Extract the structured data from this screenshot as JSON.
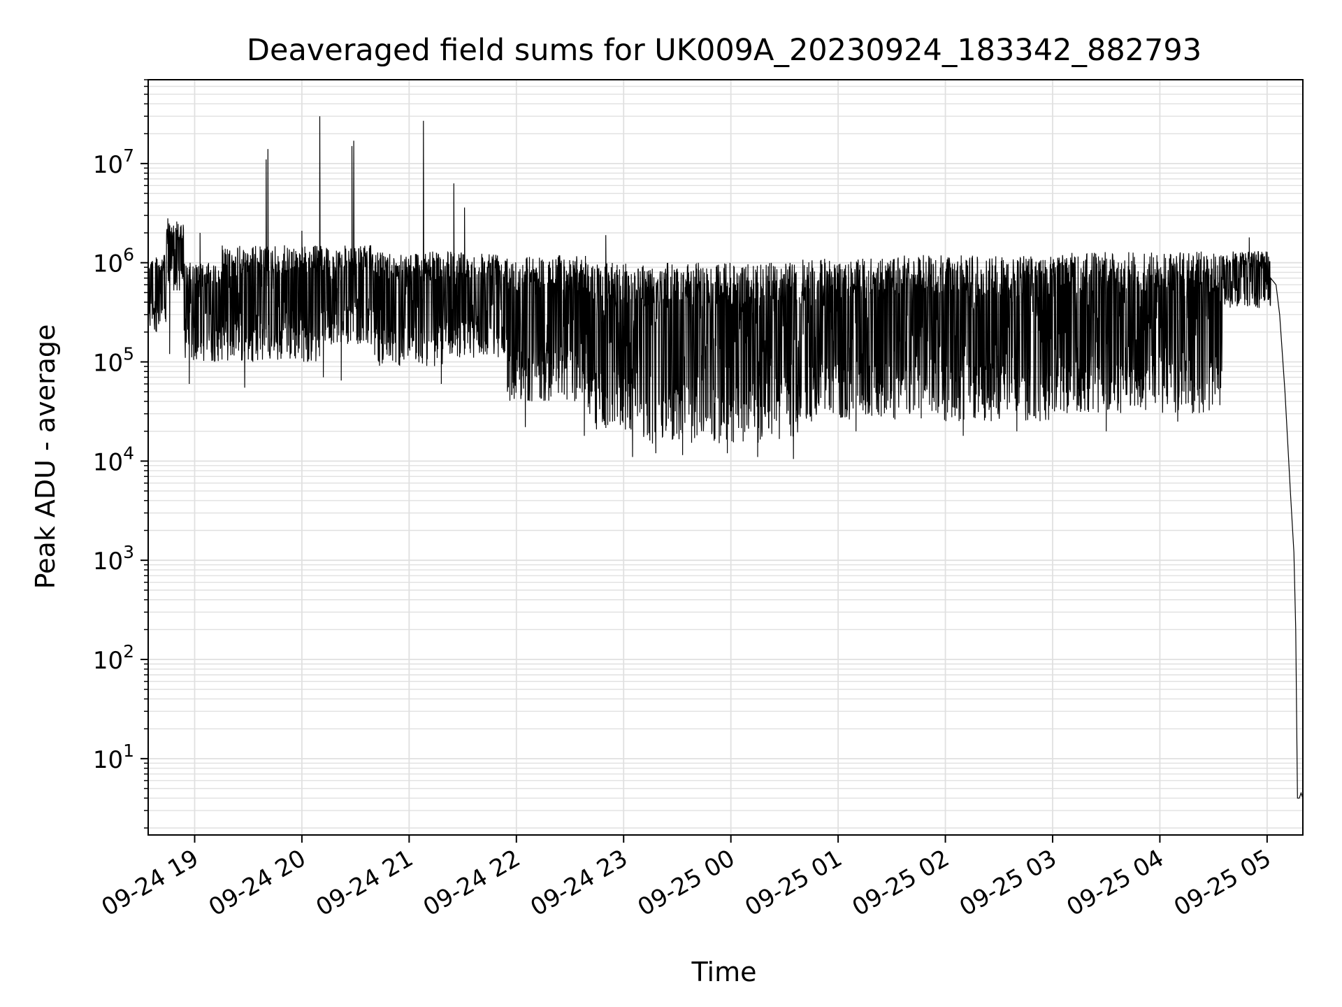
{
  "chart_data": {
    "type": "line",
    "title": "Deaveraged field sums for UK009A_20230924_183342_882793",
    "xlabel": "Time",
    "ylabel": "Peak ADU - average",
    "yscale": "log",
    "ylim": [
      1.7,
      70000000
    ],
    "xlim": [
      "2023-09-24 18:34",
      "2023-09-25 05:20"
    ],
    "grid": true,
    "line_color": "#000000",
    "grid_color": "#e0e0e0",
    "x_ticks": [
      {
        "t": "2023-09-24 19:00",
        "label": "09-24 19"
      },
      {
        "t": "2023-09-24 20:00",
        "label": "09-24 20"
      },
      {
        "t": "2023-09-24 21:00",
        "label": "09-24 21"
      },
      {
        "t": "2023-09-24 22:00",
        "label": "09-24 22"
      },
      {
        "t": "2023-09-24 23:00",
        "label": "09-24 23"
      },
      {
        "t": "2023-09-25 00:00",
        "label": "09-25 00"
      },
      {
        "t": "2023-09-25 01:00",
        "label": "09-25 01"
      },
      {
        "t": "2023-09-25 02:00",
        "label": "09-25 02"
      },
      {
        "t": "2023-09-25 03:00",
        "label": "09-25 03"
      },
      {
        "t": "2023-09-25 04:00",
        "label": "09-25 04"
      },
      {
        "t": "2023-09-25 05:00",
        "label": "09-25 05"
      }
    ],
    "y_ticks": [
      {
        "v": 10,
        "base": "10",
        "exp": "1"
      },
      {
        "v": 100,
        "base": "10",
        "exp": "2"
      },
      {
        "v": 1000,
        "base": "10",
        "exp": "3"
      },
      {
        "v": 10000,
        "base": "10",
        "exp": "4"
      },
      {
        "v": 100000,
        "base": "10",
        "exp": "5"
      },
      {
        "v": 1000000,
        "base": "10",
        "exp": "6"
      },
      {
        "v": 10000000,
        "base": "10",
        "exp": "7"
      }
    ],
    "series": [
      {
        "band_segments": [
          {
            "t0": "2023-09-24 18:34",
            "t1": "2023-09-24 18:44",
            "lo": 200000,
            "hi": 1200000
          },
          {
            "t0": "2023-09-24 18:44",
            "t1": "2023-09-24 18:54",
            "lo": 500000,
            "hi": 2500000
          },
          {
            "t0": "2023-09-24 18:54",
            "t1": "2023-09-24 19:15",
            "lo": 100000,
            "hi": 1000000
          },
          {
            "t0": "2023-09-24 19:15",
            "t1": "2023-09-24 20:10",
            "lo": 100000,
            "hi": 1500000
          },
          {
            "t0": "2023-09-24 20:10",
            "t1": "2023-09-24 20:40",
            "lo": 150000,
            "hi": 1500000
          },
          {
            "t0": "2023-09-24 20:40",
            "t1": "2023-09-24 21:20",
            "lo": 90000,
            "hi": 1300000
          },
          {
            "t0": "2023-09-24 21:20",
            "t1": "2023-09-24 21:55",
            "lo": 110000,
            "hi": 1300000
          },
          {
            "t0": "2023-09-24 21:55",
            "t1": "2023-09-24 22:40",
            "lo": 40000,
            "hi": 1200000
          },
          {
            "t0": "2023-09-24 22:40",
            "t1": "2023-09-24 23:10",
            "lo": 20000,
            "hi": 1000000
          },
          {
            "t0": "2023-09-24 23:10",
            "t1": "2023-09-25 00:40",
            "lo": 15000,
            "hi": 1000000
          },
          {
            "t0": "2023-09-25 00:40",
            "t1": "2023-09-25 01:30",
            "lo": 25000,
            "hi": 1100000
          },
          {
            "t0": "2023-09-25 01:30",
            "t1": "2023-09-25 03:00",
            "lo": 25000,
            "hi": 1200000
          },
          {
            "t0": "2023-09-25 03:00",
            "t1": "2023-09-25 04:35",
            "lo": 30000,
            "hi": 1300000
          },
          {
            "t0": "2023-09-25 04:35",
            "t1": "2023-09-25 05:02",
            "lo": 350000,
            "hi": 1300000
          }
        ],
        "tail": [
          {
            "t": "2023-09-25 05:02",
            "v": 700000
          },
          {
            "t": "2023-09-25 05:05",
            "v": 600000
          },
          {
            "t": "2023-09-25 05:07",
            "v": 300000
          },
          {
            "t": "2023-09-25 05:10",
            "v": 50000
          },
          {
            "t": "2023-09-25 05:13",
            "v": 5000
          },
          {
            "t": "2023-09-25 05:15",
            "v": 1200
          },
          {
            "t": "2023-09-25 05:16",
            "v": 200
          },
          {
            "t": "2023-09-25 05:17",
            "v": 4
          },
          {
            "t": "2023-09-25 05:18",
            "v": 4
          },
          {
            "t": "2023-09-25 05:19",
            "v": 4.5
          },
          {
            "t": "2023-09-25 05:20",
            "v": 4
          }
        ],
        "spikes": [
          {
            "t": "2023-09-24 18:45",
            "v": 2800000
          },
          {
            "t": "2023-09-24 18:50",
            "v": 2600000
          },
          {
            "t": "2023-09-24 19:03",
            "v": 2000000
          },
          {
            "t": "2023-09-24 19:40",
            "v": 11000000
          },
          {
            "t": "2023-09-24 19:41",
            "v": 14000000
          },
          {
            "t": "2023-09-24 20:00",
            "v": 2100000
          },
          {
            "t": "2023-09-24 20:10",
            "v": 30000000
          },
          {
            "t": "2023-09-24 20:28",
            "v": 15000000
          },
          {
            "t": "2023-09-24 20:29",
            "v": 17000000
          },
          {
            "t": "2023-09-24 21:08",
            "v": 27000000
          },
          {
            "t": "2023-09-24 21:25",
            "v": 6300000
          },
          {
            "t": "2023-09-24 21:31",
            "v": 3600000
          },
          {
            "t": "2023-09-24 22:50",
            "v": 1900000
          },
          {
            "t": "2023-09-25 04:50",
            "v": 1800000
          },
          {
            "t": "2023-09-25 05:02",
            "v": 1750000
          }
        ],
        "dips": [
          {
            "t": "2023-09-24 18:46",
            "v": 120000
          },
          {
            "t": "2023-09-24 18:57",
            "v": 60000
          },
          {
            "t": "2023-09-24 19:28",
            "v": 55000
          },
          {
            "t": "2023-09-24 20:12",
            "v": 70000
          },
          {
            "t": "2023-09-24 20:22",
            "v": 65000
          },
          {
            "t": "2023-09-24 21:18",
            "v": 60000
          },
          {
            "t": "2023-09-24 22:05",
            "v": 22000
          },
          {
            "t": "2023-09-24 22:38",
            "v": 18000
          },
          {
            "t": "2023-09-24 23:05",
            "v": 11000
          },
          {
            "t": "2023-09-24 23:18",
            "v": 12000
          },
          {
            "t": "2023-09-24 23:33",
            "v": 11500
          },
          {
            "t": "2023-09-24 23:58",
            "v": 12000
          },
          {
            "t": "2023-09-25 00:15",
            "v": 11000
          },
          {
            "t": "2023-09-25 00:35",
            "v": 10500
          },
          {
            "t": "2023-09-25 01:10",
            "v": 20000
          },
          {
            "t": "2023-09-25 02:10",
            "v": 18000
          },
          {
            "t": "2023-09-25 02:40",
            "v": 20000
          },
          {
            "t": "2023-09-25 03:30",
            "v": 20000
          },
          {
            "t": "2023-09-25 04:10",
            "v": 25000
          }
        ]
      }
    ]
  }
}
